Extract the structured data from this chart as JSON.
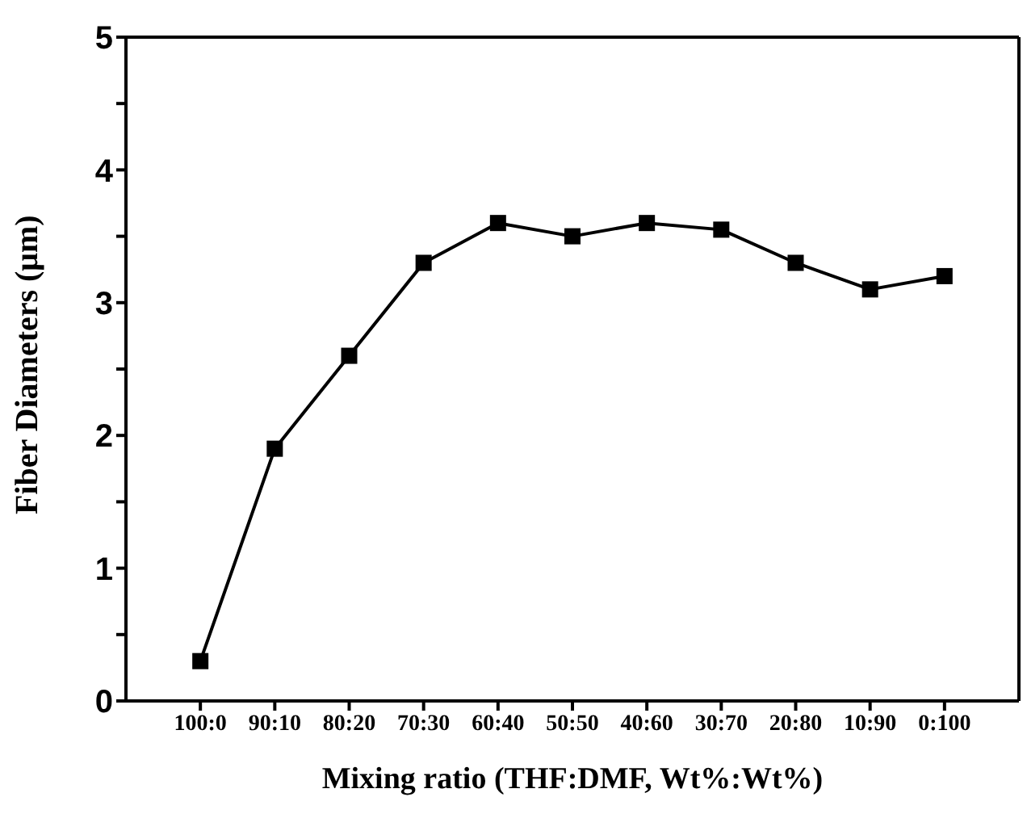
{
  "chart_data": {
    "type": "line",
    "xlabel": "Mixing ratio (THF:DMF, Wt%:Wt%)",
    "ylabel": "Fiber Diameters (μm)",
    "categories": [
      "100:0",
      "90:10",
      "80:20",
      "70:30",
      "60:40",
      "50:50",
      "40:60",
      "30:70",
      "20:80",
      "10:90",
      "0:100"
    ],
    "series": [
      {
        "color": "#000000",
        "values": [
          0.3,
          1.9,
          2.6,
          3.3,
          3.6,
          3.5,
          3.6,
          3.55,
          3.3,
          3.1,
          3.2
        ]
      }
    ],
    "ylim": [
      0,
      5
    ],
    "yticks": [
      0,
      {
        "value": 0.5,
        "label": null
      },
      1,
      {
        "value": 1.5,
        "label": null
      },
      2,
      {
        "value": 2.5,
        "label": null
      },
      3,
      {
        "value": 3.5,
        "label": null
      },
      4,
      {
        "value": 4.5,
        "label": null
      },
      5
    ],
    "grid": false,
    "marker": "square",
    "line_style": "solid"
  }
}
